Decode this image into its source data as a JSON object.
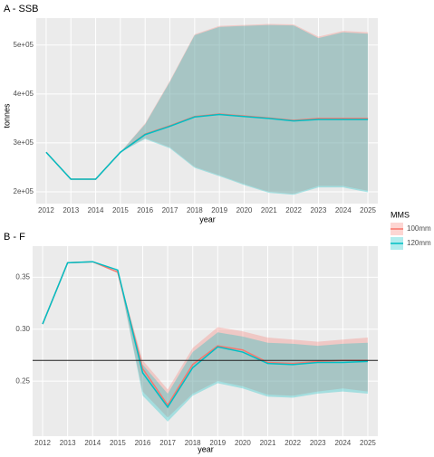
{
  "chart_data": [
    {
      "type": "line",
      "title": "A - SSB",
      "xlabel": "year",
      "ylabel": "tonnes",
      "x": [
        2012,
        2013,
        2014,
        2015,
        2016,
        2017,
        2018,
        2019,
        2020,
        2021,
        2022,
        2023,
        2024,
        2025
      ],
      "xlim": [
        2011.6,
        2025.4
      ],
      "xticks": [
        2012,
        2013,
        2014,
        2015,
        2016,
        2017,
        2018,
        2019,
        2020,
        2021,
        2022,
        2023,
        2024,
        2025
      ],
      "ylim": [
        176000,
        555000
      ],
      "yticks": [
        {
          "value": 200000,
          "label": "2e+05"
        },
        {
          "value": 300000,
          "label": "3e+05"
        },
        {
          "value": 400000,
          "label": "4e+05"
        },
        {
          "value": 500000,
          "label": "5e+05"
        }
      ],
      "grid": true,
      "series": [
        {
          "name": "100mm",
          "color": "#F8766D",
          "values": [
            281000,
            226000,
            226000,
            281000,
            318000,
            335000,
            354000,
            359000,
            355000,
            351000,
            346000,
            350000,
            350000,
            350000
          ],
          "lower": [
            281000,
            226000,
            226000,
            281000,
            310000,
            291000,
            251000,
            234000,
            216000,
            200000,
            196000,
            212000,
            212000,
            202000
          ],
          "upper": [
            281000,
            226000,
            226000,
            281000,
            340000,
            427000,
            522000,
            539000,
            541000,
            543000,
            542000,
            517000,
            529000,
            526000
          ]
        },
        {
          "name": "120mm",
          "color": "#00BFC4",
          "values": [
            281000,
            226000,
            226000,
            281000,
            317000,
            334000,
            353000,
            358000,
            354000,
            350000,
            345000,
            348000,
            348000,
            348000
          ],
          "lower": [
            281000,
            226000,
            226000,
            281000,
            308000,
            289000,
            249000,
            232000,
            214000,
            198000,
            194000,
            209000,
            209000,
            199000
          ],
          "upper": [
            281000,
            226000,
            226000,
            281000,
            338000,
            425000,
            520000,
            537000,
            539000,
            541000,
            540000,
            514000,
            526000,
            523000
          ]
        }
      ]
    },
    {
      "type": "line",
      "title": "B - F",
      "xlabel": "year",
      "legend_title": "MMS",
      "x": [
        2012,
        2013,
        2014,
        2015,
        2016,
        2017,
        2018,
        2019,
        2020,
        2021,
        2022,
        2023,
        2024,
        2025
      ],
      "xlim": [
        2011.6,
        2025.4
      ],
      "xticks": [
        2012,
        2013,
        2014,
        2015,
        2016,
        2017,
        2018,
        2019,
        2020,
        2021,
        2022,
        2023,
        2024,
        2025
      ],
      "ylim": [
        0.197,
        0.38
      ],
      "yticks": [
        0.25,
        {
          "value": 0.3,
          "label": "0.30"
        },
        0.35
      ],
      "grid": true,
      "hline": 0.27,
      "series": [
        {
          "name": "100mm",
          "color": "#F8766D",
          "values": [
            0.305,
            0.364,
            0.365,
            0.355,
            0.262,
            0.227,
            0.266,
            0.284,
            0.28,
            0.268,
            0.267,
            0.269,
            0.27,
            0.27
          ],
          "lower": [
            0.305,
            0.364,
            0.365,
            0.355,
            0.24,
            0.215,
            0.238,
            0.25,
            0.245,
            0.237,
            0.236,
            0.24,
            0.243,
            0.24
          ],
          "upper": [
            0.305,
            0.364,
            0.365,
            0.355,
            0.27,
            0.242,
            0.282,
            0.302,
            0.298,
            0.292,
            0.29,
            0.288,
            0.29,
            0.292
          ]
        },
        {
          "name": "120mm",
          "color": "#00BFC4",
          "values": [
            0.305,
            0.364,
            0.365,
            0.357,
            0.258,
            0.225,
            0.263,
            0.283,
            0.278,
            0.267,
            0.266,
            0.268,
            0.268,
            0.269
          ],
          "lower": [
            0.305,
            0.364,
            0.365,
            0.357,
            0.236,
            0.211,
            0.236,
            0.248,
            0.243,
            0.235,
            0.234,
            0.238,
            0.24,
            0.238
          ],
          "upper": [
            0.305,
            0.364,
            0.365,
            0.357,
            0.266,
            0.238,
            0.278,
            0.297,
            0.293,
            0.287,
            0.286,
            0.284,
            0.286,
            0.287
          ]
        }
      ]
    }
  ]
}
